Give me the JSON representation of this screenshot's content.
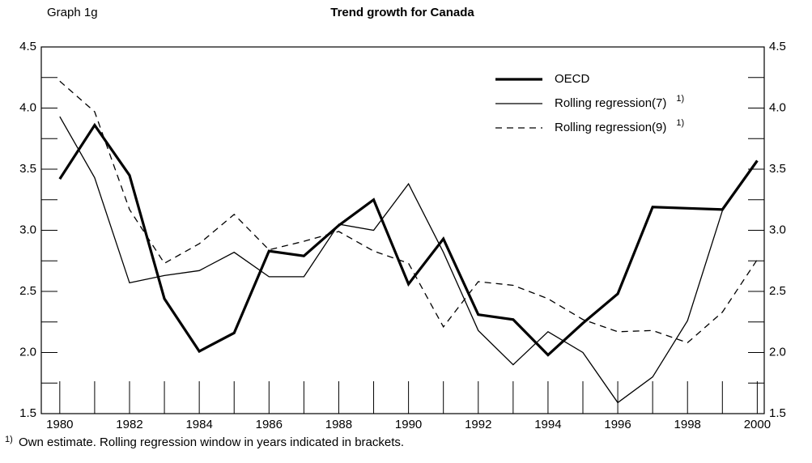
{
  "chart_data": {
    "type": "line",
    "label": "Graph 1g",
    "title": "Trend growth for Canada",
    "x": [
      1980,
      1981,
      1982,
      1983,
      1984,
      1985,
      1986,
      1987,
      1988,
      1989,
      1990,
      1991,
      1992,
      1993,
      1994,
      1995,
      1996,
      1997,
      1998,
      1999,
      2000
    ],
    "series": [
      {
        "name": "OECD",
        "color": "#000000",
        "width": 3.2,
        "dash": "none",
        "values": [
          3.42,
          3.86,
          3.45,
          2.44,
          2.01,
          2.16,
          2.83,
          2.79,
          3.04,
          3.25,
          2.56,
          2.93,
          2.31,
          2.27,
          1.98,
          2.24,
          2.48,
          3.19,
          3.18,
          3.17,
          3.57
        ]
      },
      {
        "name": "Rolling regression(7)",
        "note": "1)",
        "color": "#000000",
        "width": 1.3,
        "dash": "none",
        "values": [
          3.93,
          3.43,
          2.57,
          2.63,
          2.67,
          2.82,
          2.62,
          2.62,
          3.05,
          3.0,
          3.38,
          2.82,
          2.18,
          1.9,
          2.17,
          2.0,
          1.59,
          1.8,
          2.26,
          3.16,
          3.56
        ]
      },
      {
        "name": "Rolling regression(9)",
        "note": "1)",
        "color": "#000000",
        "width": 1.3,
        "dash": "8 6",
        "values": [
          4.22,
          3.97,
          3.17,
          2.73,
          2.89,
          3.13,
          2.84,
          2.91,
          2.99,
          2.83,
          2.73,
          2.21,
          2.58,
          2.55,
          2.44,
          2.27,
          2.17,
          2.18,
          2.08,
          2.33,
          2.76
        ]
      }
    ],
    "xlim": [
      1979.47,
      2000.2
    ],
    "xticks": [
      1980,
      1982,
      1984,
      1986,
      1988,
      1990,
      1992,
      1994,
      1996,
      1998,
      2000
    ],
    "xminorticks": [
      1981,
      1983,
      1985,
      1987,
      1989,
      1991,
      1993,
      1995,
      1997,
      1999
    ],
    "ylim": [
      1.5,
      4.5
    ],
    "yticks": [
      1.5,
      {
        "value": 2,
        "label": "2.0"
      },
      2.5,
      {
        "value": 3,
        "label": "3.0"
      },
      3.5,
      {
        "value": 4,
        "label": "4.0"
      },
      4.5
    ],
    "yminorticks": [
      1.75,
      2.25,
      2.75,
      3.25,
      3.75,
      4.25
    ],
    "footnote": {
      "marker": "1)",
      "text": "Own estimate. Rolling regression window in years indicated in brackets."
    }
  }
}
